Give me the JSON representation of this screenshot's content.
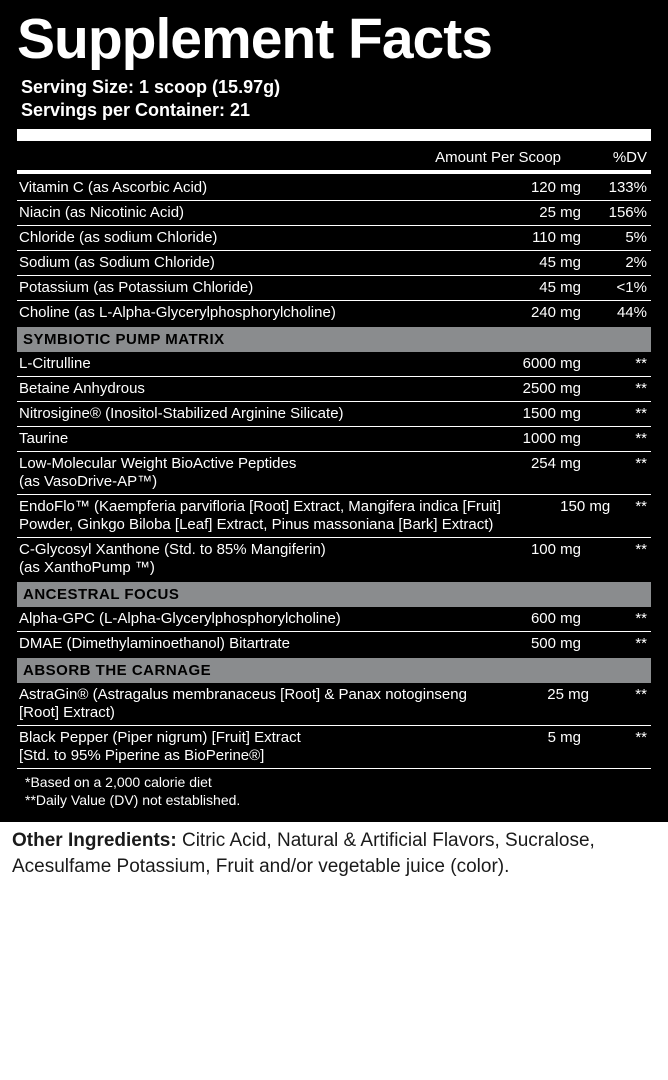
{
  "title": "Supplement Facts",
  "serving_size": "Serving Size: 1 scoop (15.97g)",
  "servings_per": "Servings per Container: 21",
  "hdr_amount": "Amount Per Scoop",
  "hdr_dv": "%DV",
  "basics": [
    {
      "name": "Vitamin C (as Ascorbic Acid)",
      "amt": "120 mg",
      "dv": "133%"
    },
    {
      "name": "Niacin (as Nicotinic Acid)",
      "amt": "25 mg",
      "dv": "156%"
    },
    {
      "name": "Chloride (as sodium Chloride)",
      "amt": "110 mg",
      "dv": "5%"
    },
    {
      "name": "Sodium (as Sodium Chloride)",
      "amt": "45 mg",
      "dv": "2%"
    },
    {
      "name": "Potassium (as Potassium Chloride)",
      "amt": "45 mg",
      "dv": "<1%"
    },
    {
      "name": "Choline (as L-Alpha-Glycerylphosphorylcholine)",
      "amt": "240 mg",
      "dv": "44%"
    }
  ],
  "section1_title": "SYMBIOTIC PUMP MATRIX",
  "section1": [
    {
      "name": "L-Citrulline",
      "amt": "6000 mg",
      "dv": "**"
    },
    {
      "name": "Betaine Anhydrous",
      "amt": "2500 mg",
      "dv": "**"
    },
    {
      "name": "Nitrosigine® (Inositol-Stabilized Arginine Silicate)",
      "amt": "1500 mg",
      "dv": "**"
    },
    {
      "name": "Taurine",
      "amt": "1000 mg",
      "dv": "**"
    },
    {
      "name": "Low-Molecular Weight BioActive Peptides\n(as VasoDrive-AP™)",
      "amt": "254 mg",
      "dv": "**"
    },
    {
      "name": "EndoFlo™ (Kaempferia parvifloria [Root] Extract, Mangifera indica [Fruit] Powder, Ginkgo Biloba [Leaf] Extract, Pinus massoniana [Bark] Extract)",
      "amt": "150 mg",
      "dv": "**"
    },
    {
      "name": "C-Glycosyl Xanthone (Std. to 85% Mangiferin)\n(as XanthoPump ™)",
      "amt": "100 mg",
      "dv": "**"
    }
  ],
  "section2_title": "ANCESTRAL FOCUS",
  "section2": [
    {
      "name": "Alpha-GPC (L-Alpha-Glycerylphosphorylcholine)",
      "amt": "600 mg",
      "dv": "**"
    },
    {
      "name": "DMAE (Dimethylaminoethanol) Bitartrate",
      "amt": "500 mg",
      "dv": "**"
    }
  ],
  "section3_title": "ABSORB THE CARNAGE",
  "section3": [
    {
      "name": "AstraGin® (Astragalus membranaceus [Root] & Panax notoginseng [Root] Extract)",
      "amt": "25 mg",
      "dv": "**"
    },
    {
      "name": "Black Pepper (Piper nigrum) [Fruit] Extract\n[Std. to 95% Piperine as BioPerine®]",
      "amt": "5 mg",
      "dv": "**"
    }
  ],
  "foot1": "*Based on a 2,000 calorie diet",
  "foot2": "**Daily Value (DV) not established.",
  "other_label": "Other Ingredients: ",
  "other_text": "Citric Acid, Natural & Artificial Flavors, Sucralose, Acesulfame Potassium, Fruit and/or vegetable juice (color)."
}
